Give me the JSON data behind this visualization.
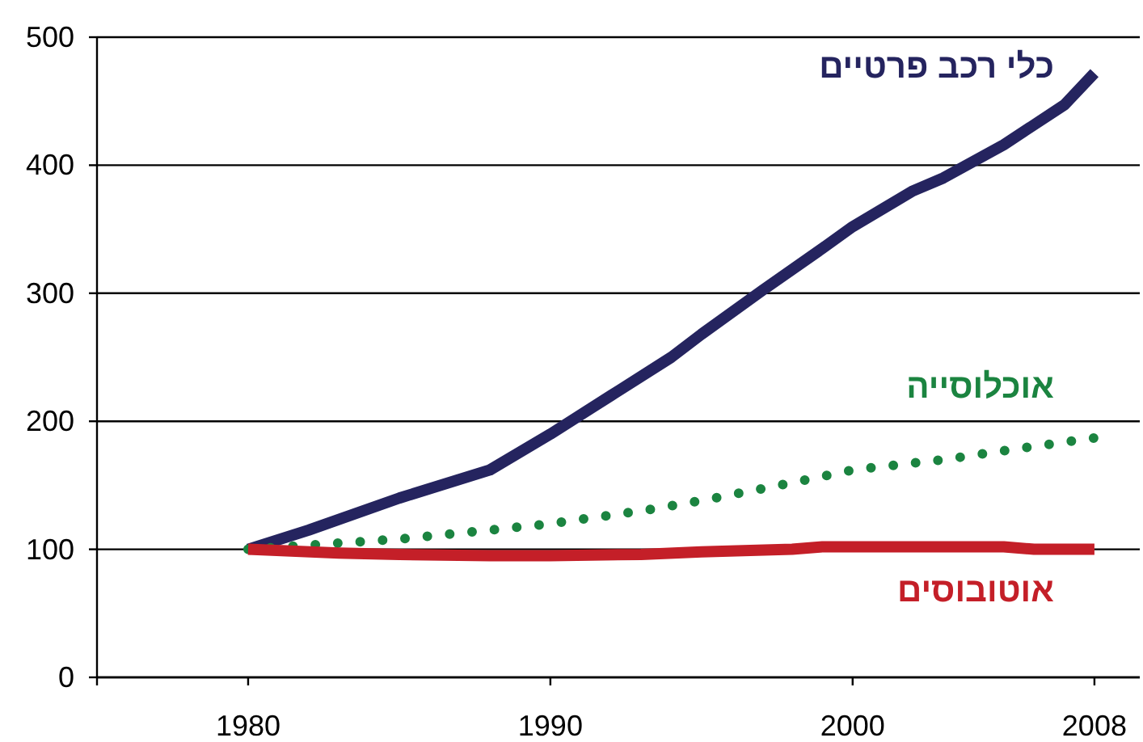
{
  "chart_data": {
    "type": "line",
    "xlim": [
      1975,
      2009.5
    ],
    "ylim": [
      0,
      500
    ],
    "xticks": [
      1980,
      1990,
      2000,
      2008
    ],
    "yticks": [
      0,
      100,
      200,
      300,
      400,
      500
    ],
    "grid": "y",
    "series": [
      {
        "name": "כלי רכב פרטיים",
        "color": "#25245f",
        "line_style": "solid",
        "x": [
          1980,
          1982,
          1985,
          1988,
          1990,
          1992,
          1994,
          1995,
          1997,
          1999,
          2000,
          2002,
          2003,
          2005,
          2007,
          2008
        ],
        "values": [
          100,
          115,
          140,
          162,
          190,
          220,
          250,
          268,
          302,
          335,
          352,
          380,
          390,
          416,
          447,
          472
        ]
      },
      {
        "name": "אוכלוסייה",
        "color": "#1b8440",
        "line_style": "dotted",
        "x": [
          1980,
          1985,
          1988,
          1990,
          1993,
          1995,
          1998,
          2000,
          2003,
          2005,
          2008
        ],
        "values": [
          100,
          108,
          115,
          120,
          130,
          138,
          152,
          162,
          170,
          177,
          187
        ]
      },
      {
        "name": "אוטובוסים",
        "color": "#c41f28",
        "line_style": "solid",
        "x": [
          1980,
          1983,
          1985,
          1988,
          1990,
          1993,
          1995,
          1998,
          1999,
          2002,
          2005,
          2006,
          2008
        ],
        "values": [
          100,
          97,
          96,
          95,
          95,
          96,
          98,
          100,
          102,
          102,
          102,
          100,
          100
        ]
      }
    ]
  }
}
